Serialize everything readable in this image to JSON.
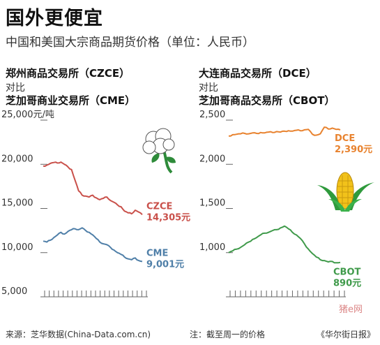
{
  "header": {
    "title": "国外更便宜",
    "subtitle": "中国和美国大宗商品期货价格（单位：人民币）"
  },
  "left_panel": {
    "exchange_top": "郑州商品交易所（CZCE）",
    "versus": "对比",
    "exchange_bottom": "芝加哥商业交易所（CME）",
    "icon": "cotton-boll-icon"
  },
  "right_panel": {
    "exchange_top": "大连商品交易所（DCE）",
    "versus": "对比",
    "exchange_bottom": "芝加哥商品交易所（CBOT）",
    "icon": "corn-cob-icon"
  },
  "footer": {
    "source": "来源：芝华数据(China-Data.com.cn)",
    "note": "注：截至周一的价格",
    "brand": "《华尔街日报》",
    "watermark": "猪e网"
  },
  "colors": {
    "red": "#c9504a",
    "blue": "#4f7fa8",
    "orange": "#e8822e",
    "green": "#3f9a4a",
    "axis": "#666666"
  },
  "chart_data": [
    {
      "type": "line",
      "title": "郑州商品交易所（CZCE） 对比 芝加哥商业交易所（CME）",
      "ylim": [
        5000,
        25000
      ],
      "yticks": [
        5000,
        10000,
        15000,
        20000,
        25000
      ],
      "ytick_labels": [
        "5,000",
        "10,000",
        "15,000",
        "20,000",
        "25,000元/吨"
      ],
      "grid": false,
      "series": [
        {
          "name": "CZCE",
          "end_label": "14,305元",
          "color": "#c9504a",
          "values": [
            19800,
            19900,
            20100,
            20200,
            20150,
            20250,
            20000,
            19700,
            19400,
            18200,
            17000,
            16500,
            16400,
            16300,
            16500,
            16200,
            16000,
            16150,
            16300,
            15900,
            15700,
            15400,
            15200,
            14700,
            14500,
            14400,
            14800,
            14600,
            14305
          ]
        },
        {
          "name": "CME",
          "end_label": "9,001元",
          "color": "#4f7fa8",
          "values": [
            11300,
            11200,
            11400,
            11700,
            12000,
            12300,
            12100,
            12400,
            12600,
            12700,
            12600,
            12800,
            12500,
            12300,
            12000,
            11600,
            11200,
            11000,
            10900,
            10600,
            10300,
            10000,
            9800,
            9500,
            9300,
            9200,
            9400,
            9100,
            9001
          ]
        }
      ]
    },
    {
      "type": "line",
      "title": "大连商品交易所（DCE） 对比 芝加哥商品交易所（CBOT）",
      "ylim": [
        500,
        2500
      ],
      "yticks": [
        1000,
        1500,
        2000,
        2500
      ],
      "ytick_labels": [
        "1,000",
        "1,500",
        "2,000",
        "2,500"
      ],
      "grid": false,
      "series": [
        {
          "name": "DCE",
          "end_label": "2,390元",
          "color": "#e8822e",
          "values": [
            2320,
            2335,
            2340,
            2345,
            2350,
            2345,
            2355,
            2350,
            2360,
            2355,
            2365,
            2360,
            2370,
            2365,
            2375,
            2380,
            2375,
            2385,
            2380,
            2390,
            2395,
            2340,
            2330,
            2345,
            2420,
            2400,
            2410,
            2395,
            2390
          ]
        },
        {
          "name": "CBOT",
          "end_label": "890元",
          "color": "#3f9a4a",
          "values": [
            1000,
            1020,
            1040,
            1060,
            1090,
            1120,
            1150,
            1170,
            1200,
            1220,
            1230,
            1250,
            1260,
            1280,
            1300,
            1270,
            1230,
            1200,
            1160,
            1100,
            1040,
            990,
            950,
            920,
            910,
            895,
            900,
            885,
            890
          ]
        }
      ]
    }
  ]
}
